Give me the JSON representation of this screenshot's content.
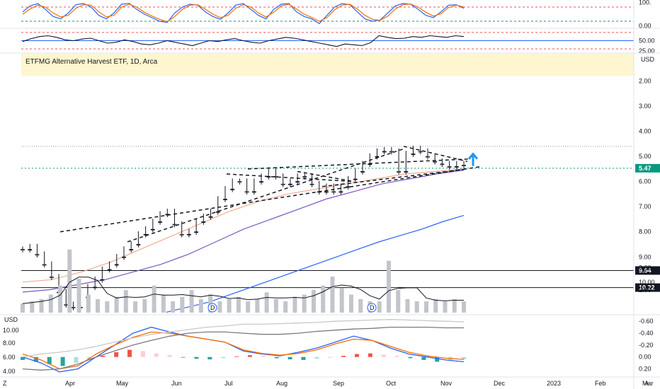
{
  "chart_data": [
    {
      "type": "line",
      "panel": "stochastic-oscillator",
      "series": [
        {
          "color": "#2962ff",
          "values": [
            60,
            85,
            95,
            70,
            40,
            30,
            55,
            90,
            95,
            80,
            45,
            30,
            55,
            92,
            96,
            70,
            50,
            35,
            20,
            15,
            55,
            80,
            92,
            88,
            60,
            40,
            28,
            55,
            88,
            95,
            70,
            45,
            30,
            70,
            92,
            95,
            60,
            40,
            30,
            10,
            45,
            80,
            95,
            90,
            60,
            30,
            20,
            25,
            55,
            85,
            95,
            92,
            70,
            45,
            35,
            60,
            88,
            90,
            75
          ]
        },
        {
          "color": "#ff6d00",
          "values": [
            50,
            72,
            88,
            80,
            55,
            38,
            45,
            75,
            90,
            88,
            60,
            38,
            45,
            80,
            92,
            80,
            58,
            42,
            28,
            18,
            40,
            70,
            88,
            90,
            72,
            50,
            35,
            45,
            75,
            90,
            80,
            55,
            38,
            58,
            85,
            92,
            72,
            50,
            36,
            20,
            35,
            68,
            88,
            92,
            72,
            45,
            28,
            24,
            42,
            72,
            90,
            93,
            80,
            58,
            42,
            52,
            78,
            88,
            80
          ]
        }
      ],
      "ylim": [
        -10,
        110
      ],
      "y_ticks": [
        "100.",
        "0.00"
      ],
      "levels": [
        80,
        20
      ],
      "level_colors": [
        "#ef5350",
        "#089981"
      ]
    },
    {
      "type": "line",
      "panel": "rsi",
      "series": [
        {
          "color": "#131722",
          "values": [
            48,
            55,
            60,
            62,
            58,
            52,
            50,
            54,
            56,
            50,
            44,
            46,
            52,
            48,
            42,
            40,
            44,
            50,
            46,
            42,
            38,
            44,
            50,
            48,
            52,
            55,
            50,
            46,
            44,
            50,
            54,
            58,
            56,
            52,
            48,
            44,
            40,
            36,
            42,
            40,
            38,
            45,
            62,
            58,
            55,
            56,
            60,
            58,
            62,
            60,
            58,
            62,
            60
          ]
        }
      ],
      "ylim": [
        20,
        80
      ],
      "y_ticks": [
        "50.00",
        "25.00"
      ],
      "levels": [
        70,
        30,
        50
      ],
      "level_colors": [
        "#ef5350",
        "#ef5350",
        "#2962ff"
      ]
    },
    {
      "type": "candlestick",
      "panel": "price",
      "title": "ETFMG Alternative Harvest ETF, 1D, Arca",
      "currency": "USD",
      "x_ticks": [
        "Apr",
        "May",
        "Jun",
        "Jul",
        "Aug",
        "Sep",
        "Oct",
        "Nov",
        "Dec",
        "2023",
        "Feb",
        "Mar"
      ],
      "y_ticks": [
        "10.00",
        "9.00",
        "8.00",
        "7.00",
        "6.00",
        "5.00",
        "4.00",
        "3.00",
        "2.00"
      ],
      "ylim": [
        1.0,
        11.3
      ],
      "price_labels": [
        {
          "value": 10.22,
          "text": "10.22",
          "color": "#131722"
        },
        {
          "value": 9.54,
          "text": "9.54",
          "color": "#131722"
        },
        {
          "value": 5.47,
          "text": "5.47",
          "color": "#089981"
        }
      ],
      "close": [
        8.7,
        8.6,
        8.9,
        9.3,
        9.8,
        10.4,
        10.9,
        11.0,
        10.6,
        10.2,
        9.9,
        9.5,
        9.3,
        9.0,
        8.7,
        8.5,
        8.1,
        7.9,
        7.6,
        7.3,
        7.2,
        7.7,
        8.1,
        8.0,
        7.6,
        7.4,
        7.2,
        6.7,
        6.3,
        6.0,
        6.0,
        6.4,
        6.0,
        5.8,
        5.6,
        5.8,
        6.1,
        6.0,
        5.8,
        5.8,
        6.1,
        6.4,
        6.2,
        6.4,
        6.2,
        5.9,
        5.6,
        5.3,
        5.0,
        4.8,
        4.75,
        4.8,
        5.6,
        4.9,
        4.7,
        4.8,
        5.0,
        5.2,
        5.3,
        5.4,
        5.3,
        5.35
      ],
      "overlays": [
        {
          "name": "ma-200",
          "color": "#2962ff",
          "values": [
            11.2,
            11.0,
            10.8,
            10.5,
            10.2,
            9.9,
            9.6,
            9.3,
            9.0,
            8.7,
            8.4,
            8.15,
            7.9,
            7.6,
            7.35
          ]
        },
        {
          "name": "ma-100",
          "color": "#7e57c2",
          "values": [
            10.4,
            10.3,
            10.1,
            9.9,
            9.6,
            9.3,
            8.9,
            8.4,
            7.9,
            7.5,
            7.1,
            6.7,
            6.4,
            6.1,
            5.9,
            5.7,
            5.55
          ]
        },
        {
          "name": "ma-50",
          "color": "#f7a98d",
          "values": [
            10.0,
            9.9,
            9.6,
            9.2,
            8.7,
            8.2,
            7.7,
            7.2,
            6.8,
            6.5,
            6.3,
            6.1,
            5.9,
            5.7,
            5.6,
            5.5
          ]
        }
      ]
    },
    {
      "type": "bar",
      "panel": "volume",
      "values": [
        1.4,
        1.5,
        1.6,
        1.8,
        2.2,
        3.8,
        2.5,
        1.8,
        1.6,
        1.5,
        1.7,
        2.0,
        1.5,
        1.6,
        2.2,
        1.8,
        1.5,
        1.7,
        2.0,
        1.6,
        1.8,
        1.5,
        1.6,
        1.7,
        1.5,
        1.6,
        1.9,
        1.6,
        1.5,
        1.7,
        1.8,
        2.0,
        2.2,
        2.6,
        2.1,
        1.8,
        1.6,
        1.5,
        1.5,
        3.3,
        2.0,
        1.6,
        1.5,
        1.5,
        1.6,
        1.5,
        1.6,
        1.5
      ],
      "ylim": [
        1.0,
        4.2
      ],
      "markers": [
        "D",
        "D"
      ]
    },
    {
      "type": "bar",
      "panel": "macd",
      "currency": "USD",
      "y_ticks_left": [
        "10.00",
        "8.00",
        "6.00",
        "4.00"
      ],
      "y_ticks_right": [
        "0.20",
        "0.00",
        "-0.20",
        "-0.40",
        "-0.60"
      ],
      "ylim": [
        -0.65,
        0.3
      ],
      "histogram": [
        0.05,
        0.08,
        0.12,
        0.15,
        0.1,
        0.05,
        -0.02,
        -0.08,
        -0.12,
        -0.1,
        -0.06,
        -0.03,
        0.01,
        0.03,
        0.04,
        0.02,
        -0.01,
        -0.03,
        -0.02,
        0.02,
        0.04,
        0.05,
        0.03,
        0.01,
        -0.02,
        -0.05,
        -0.06,
        -0.04,
        -0.02,
        0.02,
        0.05,
        0.08,
        0.06,
        0.04
      ],
      "series": [
        {
          "color": "#2962ff",
          "values": [
            0.0,
            0.1,
            0.25,
            0.2,
            0.0,
            -0.2,
            -0.4,
            -0.5,
            -0.42,
            -0.35,
            -0.3,
            -0.25,
            -0.1,
            -0.05,
            -0.02,
            -0.08,
            -0.15,
            -0.25,
            -0.35,
            -0.28,
            -0.15,
            -0.05,
            0.0,
            0.05,
            0.08
          ]
        },
        {
          "color": "#ff6d00",
          "values": [
            -0.05,
            0.05,
            0.2,
            0.15,
            -0.05,
            -0.2,
            -0.33,
            -0.42,
            -0.4,
            -0.35,
            -0.3,
            -0.25,
            -0.12,
            -0.06,
            -0.03,
            -0.06,
            -0.12,
            -0.22,
            -0.3,
            -0.28,
            -0.18,
            -0.08,
            -0.02,
            0.02,
            0.04
          ]
        },
        {
          "color": "#787b86",
          "values": [
            0.2,
            0.22,
            0.2,
            0.12,
            0.0,
            -0.1,
            -0.2,
            -0.28,
            -0.35,
            -0.4,
            -0.42,
            -0.42,
            -0.4,
            -0.38,
            -0.38,
            -0.4,
            -0.43,
            -0.45,
            -0.47,
            -0.48,
            -0.5,
            -0.5,
            -0.5,
            -0.49,
            -0.49
          ]
        },
        {
          "color": "#c8c8c8",
          "values": [
            0.0,
            -0.05,
            -0.08,
            -0.12,
            -0.18,
            -0.25,
            -0.32,
            -0.38,
            -0.42,
            -0.46,
            -0.5,
            -0.52,
            -0.55,
            -0.55,
            -0.56,
            -0.57,
            -0.58,
            -0.6,
            -0.61,
            -0.62,
            -0.63,
            -0.62,
            -0.61,
            -0.6,
            -0.59
          ]
        }
      ]
    }
  ],
  "footer": {
    "left_icon": "Z",
    "right_icon": "A"
  }
}
